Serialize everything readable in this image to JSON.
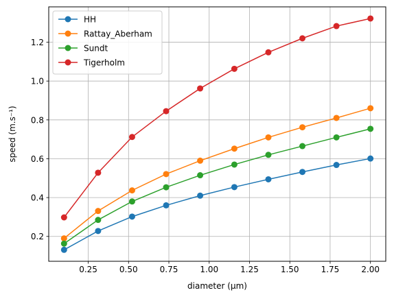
{
  "chart_data": {
    "type": "line",
    "title": "",
    "xlabel": "diameter (μm)",
    "ylabel": "speed (m.s⁻¹)",
    "xlim": [
      0.005,
      2.095
    ],
    "ylim": [
      0.072,
      1.382
    ],
    "grid": true,
    "legend_position": "top-left",
    "x_ticks": [
      0.25,
      0.5,
      0.75,
      1.0,
      1.25,
      1.5,
      1.75,
      2.0
    ],
    "x_tick_labels": [
      "0.25",
      "0.50",
      "0.75",
      "1.00",
      "1.25",
      "1.50",
      "1.75",
      "2.00"
    ],
    "y_ticks": [
      0.2,
      0.4,
      0.6,
      0.8,
      1.0,
      1.2
    ],
    "y_tick_labels": [
      "0.2",
      "0.4",
      "0.6",
      "0.8",
      "1.0",
      "1.2"
    ],
    "x": [
      0.1,
      0.311,
      0.522,
      0.733,
      0.944,
      1.156,
      1.367,
      1.578,
      1.789,
      2.0
    ],
    "series": [
      {
        "name": "HH",
        "color": "#1f77b4",
        "values": [
          0.131,
          0.228,
          0.302,
          0.36,
          0.41,
          0.454,
          0.494,
          0.532,
          0.568,
          0.601
        ]
      },
      {
        "name": "Rattay_Aberham",
        "color": "#ff7f0e",
        "values": [
          0.19,
          0.331,
          0.437,
          0.521,
          0.59,
          0.652,
          0.71,
          0.762,
          0.81,
          0.86
        ]
      },
      {
        "name": "Sundt",
        "color": "#2ca02c",
        "values": [
          0.163,
          0.285,
          0.38,
          0.453,
          0.515,
          0.57,
          0.62,
          0.665,
          0.71,
          0.754
        ]
      },
      {
        "name": "Tigerholm",
        "color": "#d62728",
        "values": [
          0.298,
          0.528,
          0.712,
          0.845,
          0.962,
          1.063,
          1.148,
          1.22,
          1.283,
          1.322
        ]
      }
    ]
  }
}
